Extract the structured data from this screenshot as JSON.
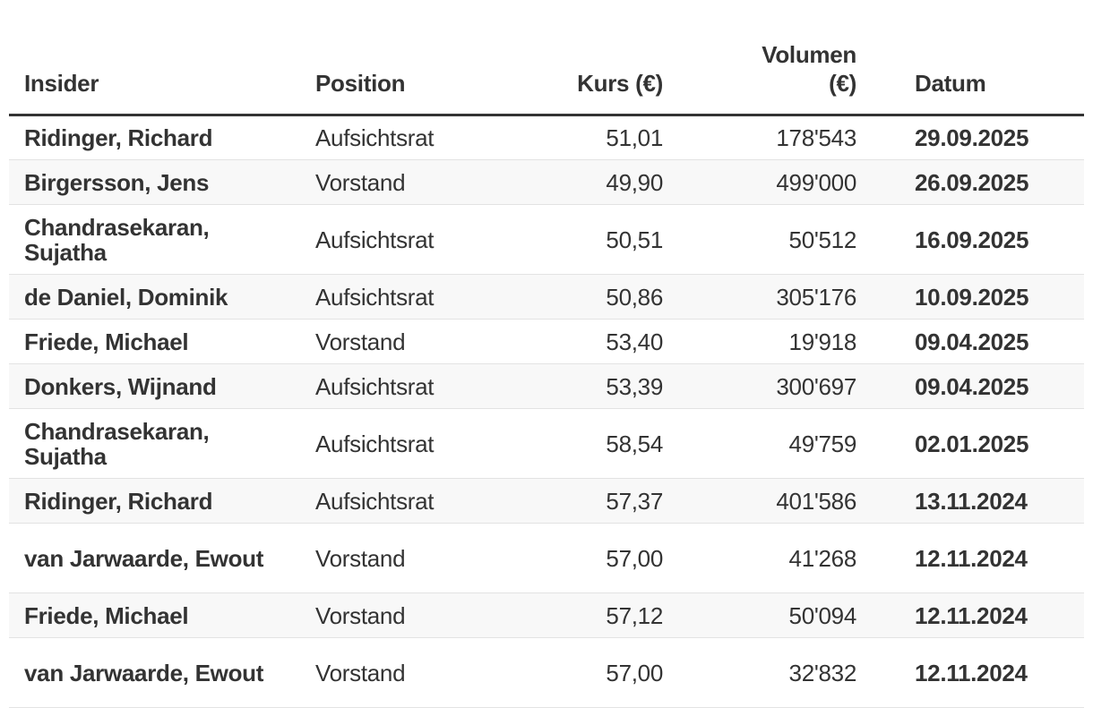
{
  "headers": {
    "insider": "Insider",
    "position": "Position",
    "kurs": "Kurs (€)",
    "volumen": "Volumen (€)",
    "datum": "Datum"
  },
  "rows": [
    {
      "insider": "Ridinger, Richard",
      "position": "Aufsichtsrat",
      "kurs": "51,01",
      "volumen": "178'543",
      "datum": "29.09.2025"
    },
    {
      "insider": "Birgersson, Jens",
      "position": "Vorstand",
      "kurs": "49,90",
      "volumen": "499'000",
      "datum": "26.09.2025"
    },
    {
      "insider": "Chandrasekaran, Sujatha",
      "position": "Aufsichtsrat",
      "kurs": "50,51",
      "volumen": "50'512",
      "datum": "16.09.2025"
    },
    {
      "insider": "de Daniel, Dominik",
      "position": "Aufsichtsrat",
      "kurs": "50,86",
      "volumen": "305'176",
      "datum": "10.09.2025"
    },
    {
      "insider": "Friede, Michael",
      "position": "Vorstand",
      "kurs": "53,40",
      "volumen": "19'918",
      "datum": "09.04.2025"
    },
    {
      "insider": "Donkers, Wijnand",
      "position": "Aufsichtsrat",
      "kurs": "53,39",
      "volumen": "300'697",
      "datum": "09.04.2025"
    },
    {
      "insider": "Chandrasekaran, Sujatha",
      "position": "Aufsichtsrat",
      "kurs": "58,54",
      "volumen": "49'759",
      "datum": "02.01.2025"
    },
    {
      "insider": "Ridinger, Richard",
      "position": "Aufsichtsrat",
      "kurs": "57,37",
      "volumen": "401'586",
      "datum": "13.11.2024"
    },
    {
      "insider": "van Jarwaarde, Ewout",
      "position": "Vorstand",
      "kurs": "57,00",
      "volumen": "41'268",
      "datum": "12.11.2024"
    },
    {
      "insider": "Friede, Michael",
      "position": "Vorstand",
      "kurs": "57,12",
      "volumen": "50'094",
      "datum": "12.11.2024"
    },
    {
      "insider": "van Jarwaarde, Ewout",
      "position": "Vorstand",
      "kurs": "57,00",
      "volumen": "32'832",
      "datum": "12.11.2024"
    }
  ]
}
